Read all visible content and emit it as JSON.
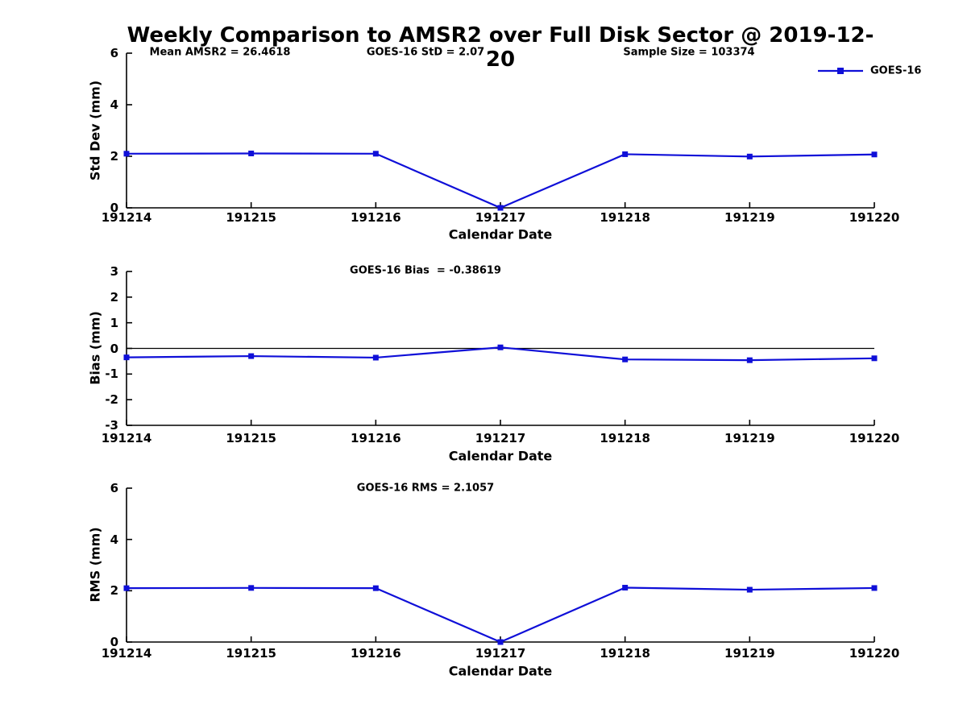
{
  "figure": {
    "title": "Weekly Comparison to AMSR2 over Full Disk Sector @ 2019-12-20",
    "legend": {
      "label": "GOES-16",
      "marker": "filled-square",
      "line_color": "#0f0fd8"
    }
  },
  "colors": {
    "series_blue": "#0f0fd8",
    "axis": "#000000",
    "zero_line": "#000000"
  },
  "chart_data": [
    {
      "type": "line",
      "id": "std-dev",
      "series_name": "GOES-16",
      "ylabel": "Std Dev (mm)",
      "xlabel": "Calendar Date",
      "categories": [
        "191214",
        "191215",
        "191216",
        "191217",
        "191218",
        "191219",
        "191220"
      ],
      "values": [
        2.1,
        2.11,
        2.1,
        0.0,
        2.08,
        1.99,
        2.07
      ],
      "ylim": [
        0,
        6
      ],
      "yticks": [
        6,
        4,
        2,
        0
      ],
      "grid": false,
      "legend_position": "upper-right-outside",
      "annotations": [
        "Mean AMSR2 = 26.4618",
        "GOES-16 StD = 2.07",
        "Sample Size = 103374"
      ],
      "zero_line": false
    },
    {
      "type": "line",
      "id": "bias",
      "series_name": "GOES-16",
      "ylabel": "Bias (mm)",
      "xlabel": "Calendar Date",
      "categories": [
        "191214",
        "191215",
        "191216",
        "191217",
        "191218",
        "191219",
        "191220"
      ],
      "values": [
        -0.35,
        -0.3,
        -0.36,
        0.04,
        -0.43,
        -0.46,
        -0.386
      ],
      "ylim": [
        -3,
        3
      ],
      "yticks": [
        3,
        2,
        1,
        0,
        -1,
        -2,
        -3
      ],
      "grid": false,
      "annotations": [
        "GOES-16 Bias  = -0.38619"
      ],
      "zero_line": true
    },
    {
      "type": "line",
      "id": "rms",
      "series_name": "GOES-16",
      "ylabel": "RMS (mm)",
      "xlabel": "Calendar Date",
      "categories": [
        "191214",
        "191215",
        "191216",
        "191217",
        "191218",
        "191219",
        "191220"
      ],
      "values": [
        2.1,
        2.11,
        2.1,
        0.0,
        2.12,
        2.04,
        2.106
      ],
      "ylim": [
        0,
        6
      ],
      "yticks": [
        6,
        4,
        2,
        0
      ],
      "grid": false,
      "annotations": [
        "GOES-16 RMS = 2.1057"
      ],
      "zero_line": false
    }
  ]
}
